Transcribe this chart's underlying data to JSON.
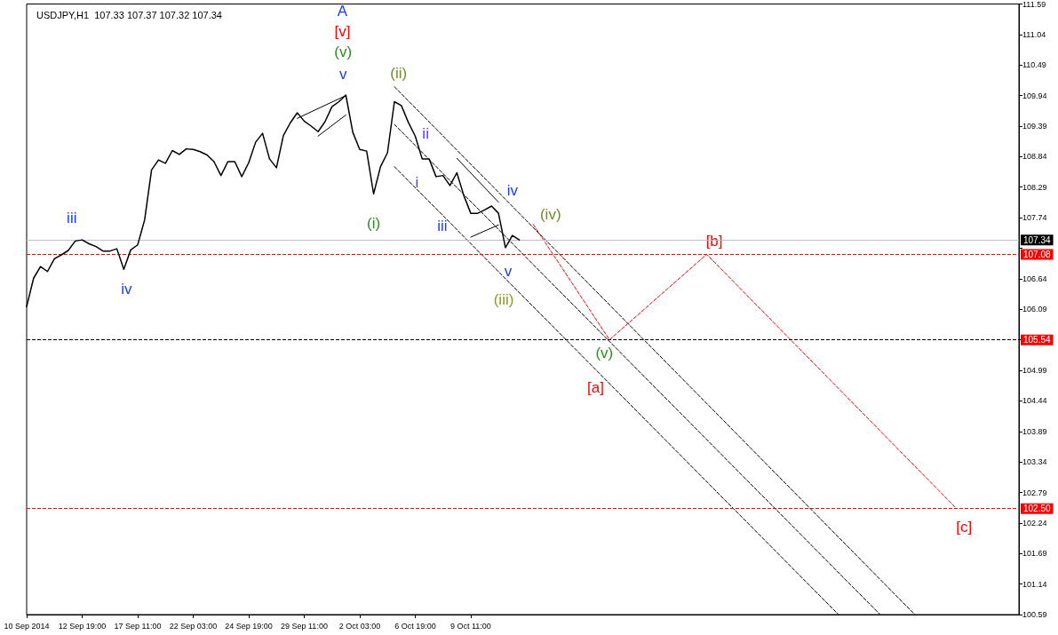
{
  "chart_data": {
    "type": "line",
    "title": "USDJPY,H1  107.33 107.37 107.32 107.34",
    "categories": [
      "10 Sep 2014",
      null,
      null,
      null,
      null,
      null,
      null,
      null,
      "12 Sep 19:00",
      null,
      null,
      null,
      null,
      null,
      null,
      null,
      "17 Sep 11:00",
      null,
      null,
      null,
      null,
      null,
      null,
      null,
      "22 Sep 03:00",
      null,
      null,
      null,
      null,
      null,
      null,
      null,
      "24 Sep 19:00",
      null,
      null,
      null,
      null,
      null,
      null,
      null,
      "29 Sep 11:00",
      null,
      null,
      null,
      null,
      null,
      null,
      null,
      "2 Oct 03:00",
      null,
      null,
      null,
      null,
      null,
      null,
      null,
      "6 Oct 19:00",
      null,
      null,
      null,
      null,
      null,
      null,
      null,
      "9 Oct 11:00",
      null,
      null,
      null,
      null,
      null,
      null,
      null,
      null,
      null,
      null,
      null,
      null,
      null,
      null,
      null,
      null,
      null,
      null,
      null,
      null,
      null,
      null,
      null,
      null,
      null,
      null,
      null,
      null,
      null,
      null,
      null,
      null,
      null,
      null,
      null,
      null,
      null,
      null,
      null,
      null,
      null,
      null,
      null,
      null,
      null,
      null,
      null,
      null,
      null,
      null,
      null,
      null,
      null,
      null,
      null,
      null,
      null,
      null,
      null,
      null,
      null,
      null,
      null,
      null,
      null,
      null,
      null,
      null,
      null,
      null,
      null,
      null,
      null,
      null,
      null,
      null,
      null,
      null,
      null
    ],
    "ylim": [
      100.59,
      111.59
    ],
    "yticks": [
      100.59,
      101.14,
      101.69,
      102.24,
      102.79,
      103.34,
      103.89,
      104.44,
      104.99,
      105.54,
      106.09,
      106.64,
      {
        "value": 107.19,
        "label": null
      },
      107.74,
      108.29,
      108.84,
      109.39,
      109.94,
      110.49,
      111.04,
      111.59
    ],
    "grid": false,
    "marker": "none",
    "series": [
      {
        "color": "#000000",
        "line_style": "solid",
        "values": [
          106.14,
          106.65,
          106.86,
          106.77,
          107.0,
          107.07,
          107.15,
          107.32,
          107.34,
          107.27,
          107.22,
          107.14,
          107.14,
          107.18,
          106.81,
          107.16,
          107.25,
          107.7,
          108.6,
          108.78,
          108.72,
          108.95,
          108.88,
          108.98,
          108.97,
          108.93,
          108.87,
          108.75,
          108.5,
          108.75,
          108.75,
          108.48,
          108.73,
          109.1,
          109.26,
          108.8,
          108.64,
          109.22,
          109.45,
          109.63,
          109.48,
          109.39,
          109.29,
          109.47,
          109.74,
          109.83,
          109.95,
          109.28,
          108.97,
          108.94,
          108.17,
          108.66,
          108.91,
          109.83,
          109.76,
          109.46,
          109.21,
          108.8,
          108.8,
          108.48,
          108.5,
          108.32,
          108.55,
          108.14,
          107.82,
          107.82,
          107.88,
          107.95,
          107.82,
          107.2,
          107.42,
          107.34,
          null,
          null,
          null,
          null,
          null,
          null,
          null,
          null,
          null,
          null,
          null,
          null,
          null,
          null,
          null,
          null,
          null,
          null,
          null,
          null,
          null,
          null,
          null,
          null,
          null,
          null,
          null,
          null,
          null,
          null,
          null,
          null,
          null,
          null,
          null,
          null,
          null,
          null,
          null,
          null,
          null,
          null,
          null,
          null,
          null,
          null,
          null,
          null,
          null,
          null,
          null,
          null,
          null,
          null,
          null,
          null,
          null,
          null,
          null,
          null,
          null,
          null,
          null,
          null,
          null,
          null,
          null,
          null,
          null,
          null,
          null,
          null
        ]
      },
      {
        "color": "#000000",
        "line_style": "dashed",
        "values": [
          null,
          null,
          null,
          null,
          null,
          null,
          null,
          null,
          null,
          null,
          null,
          null,
          null,
          null,
          null,
          null,
          null,
          null,
          null,
          null,
          null,
          null,
          null,
          null,
          null,
          null,
          null,
          null,
          null,
          null,
          null,
          null,
          null,
          null,
          null,
          null,
          null,
          null,
          null,
          null,
          null,
          null,
          null,
          null,
          null,
          null,
          null,
          null,
          null,
          null,
          null,
          null,
          null,
          110.1,
          null,
          null,
          null,
          null,
          null,
          null,
          null,
          null,
          null,
          null,
          null,
          null,
          null,
          null,
          null,
          null,
          null,
          null,
          null,
          null,
          null,
          null,
          null,
          null,
          null,
          null,
          null,
          null,
          null,
          null,
          null,
          null,
          null,
          null,
          null,
          null,
          null,
          null,
          null,
          null,
          null,
          null,
          null,
          null,
          null,
          null,
          null,
          null,
          null,
          null,
          null,
          null,
          null,
          null,
          null,
          null,
          null,
          null,
          null,
          null,
          null,
          null,
          null,
          null,
          null,
          null,
          null,
          null,
          null,
          null,
          null,
          null,
          null,
          null,
          100.59,
          null,
          null,
          null,
          null,
          null,
          null,
          null,
          null,
          null,
          null,
          null,
          null,
          null,
          null,
          null
        ]
      },
      {
        "color": "#000000",
        "line_style": "dashed",
        "values": [
          null,
          null,
          null,
          null,
          null,
          null,
          null,
          null,
          null,
          null,
          null,
          null,
          null,
          null,
          null,
          null,
          null,
          null,
          null,
          null,
          null,
          null,
          null,
          null,
          null,
          null,
          null,
          null,
          null,
          null,
          null,
          null,
          null,
          null,
          null,
          null,
          null,
          null,
          null,
          null,
          null,
          null,
          null,
          null,
          null,
          null,
          null,
          null,
          null,
          null,
          null,
          null,
          null,
          109.42,
          null,
          null,
          null,
          null,
          null,
          null,
          null,
          null,
          null,
          null,
          null,
          null,
          null,
          null,
          null,
          null,
          null,
          null,
          null,
          null,
          null,
          null,
          null,
          null,
          null,
          null,
          null,
          null,
          null,
          null,
          null,
          null,
          null,
          null,
          null,
          null,
          null,
          null,
          null,
          null,
          null,
          null,
          null,
          null,
          null,
          null,
          null,
          null,
          null,
          null,
          null,
          null,
          null,
          null,
          null,
          null,
          null,
          null,
          null,
          null,
          null,
          null,
          null,
          null,
          null,
          null,
          null,
          null,
          null,
          100.59,
          null,
          null,
          null,
          null,
          null,
          null,
          null,
          null,
          null,
          null,
          null,
          null,
          null,
          null,
          null,
          null,
          null,
          null,
          null,
          null
        ]
      },
      {
        "color": "#000000",
        "line_style": "dashed",
        "values": [
          null,
          null,
          null,
          null,
          null,
          null,
          null,
          null,
          null,
          null,
          null,
          null,
          null,
          null,
          null,
          null,
          null,
          null,
          null,
          null,
          null,
          null,
          null,
          null,
          null,
          null,
          null,
          null,
          null,
          null,
          null,
          null,
          null,
          null,
          null,
          null,
          null,
          null,
          null,
          null,
          null,
          null,
          null,
          null,
          null,
          null,
          null,
          null,
          null,
          null,
          null,
          null,
          null,
          108.66,
          null,
          null,
          null,
          null,
          null,
          null,
          null,
          null,
          null,
          null,
          null,
          null,
          null,
          null,
          null,
          null,
          null,
          null,
          null,
          null,
          null,
          null,
          null,
          null,
          null,
          null,
          null,
          null,
          null,
          null,
          null,
          null,
          null,
          null,
          null,
          null,
          null,
          null,
          null,
          null,
          null,
          null,
          null,
          null,
          null,
          null,
          null,
          null,
          null,
          null,
          null,
          null,
          null,
          null,
          null,
          null,
          null,
          null,
          null,
          null,
          null,
          null,
          null,
          100.59,
          null,
          null,
          null,
          null,
          null,
          null,
          null,
          null,
          null,
          null,
          null,
          null,
          null,
          null,
          null,
          null,
          null,
          null,
          null,
          null,
          null,
          null,
          null,
          null,
          null,
          null
        ]
      },
      {
        "color": "#000000",
        "line_style": "solid",
        "values": [
          null,
          null,
          null,
          null,
          null,
          null,
          null,
          null,
          null,
          null,
          null,
          null,
          null,
          null,
          null,
          null,
          null,
          null,
          null,
          null,
          null,
          null,
          null,
          null,
          null,
          null,
          null,
          null,
          null,
          null,
          null,
          null,
          null,
          null,
          null,
          null,
          null,
          null,
          null,
          109.53,
          null,
          null,
          null,
          null,
          null,
          null,
          109.94,
          null,
          null,
          null,
          null,
          null,
          null,
          null,
          null,
          null,
          null,
          null,
          null,
          null,
          null,
          null,
          null,
          null,
          null,
          null,
          null,
          null,
          null,
          null,
          null,
          null,
          null,
          null,
          null,
          null,
          null,
          null,
          null,
          null,
          null,
          null,
          null,
          null,
          null,
          null,
          null,
          null,
          null,
          null,
          null,
          null,
          null,
          null,
          null,
          null,
          null,
          null,
          null,
          null,
          null,
          null,
          null,
          null,
          null,
          null,
          null,
          null,
          null,
          null,
          null,
          null,
          null,
          null,
          null,
          null,
          null,
          null,
          null,
          null,
          null,
          null,
          null,
          null,
          null,
          null,
          null,
          null,
          null,
          null,
          null,
          null,
          null,
          null,
          null,
          null,
          null,
          null,
          null,
          null,
          null,
          null,
          null,
          null
        ]
      },
      {
        "color": "#000000",
        "line_style": "solid",
        "values": [
          null,
          null,
          null,
          null,
          null,
          null,
          null,
          null,
          null,
          null,
          null,
          null,
          null,
          null,
          null,
          null,
          null,
          null,
          null,
          null,
          null,
          null,
          null,
          null,
          null,
          null,
          null,
          null,
          null,
          null,
          null,
          null,
          null,
          null,
          null,
          null,
          null,
          null,
          null,
          null,
          null,
          null,
          109.21,
          null,
          null,
          null,
          109.59,
          null,
          null,
          null,
          null,
          null,
          null,
          null,
          null,
          null,
          null,
          null,
          null,
          null,
          null,
          null,
          null,
          null,
          null,
          null,
          null,
          null,
          null,
          null,
          null,
          null,
          null,
          null,
          null,
          null,
          null,
          null,
          null,
          null,
          null,
          null,
          null,
          null,
          null,
          null,
          null,
          null,
          null,
          null,
          null,
          null,
          null,
          null,
          null,
          null,
          null,
          null,
          null,
          null,
          null,
          null,
          null,
          null,
          null,
          null,
          null,
          null,
          null,
          null,
          null,
          null,
          null,
          null,
          null,
          null,
          null,
          null,
          null,
          null,
          null,
          null,
          null,
          null,
          null,
          null,
          null,
          null,
          null,
          null,
          null,
          null,
          null,
          null,
          null,
          null,
          null,
          null,
          null,
          null,
          null,
          null,
          null,
          null
        ]
      },
      {
        "color": "#000000",
        "line_style": "solid",
        "values": [
          null,
          null,
          null,
          null,
          null,
          null,
          null,
          null,
          null,
          null,
          null,
          null,
          null,
          null,
          null,
          null,
          null,
          null,
          null,
          null,
          null,
          null,
          null,
          null,
          null,
          null,
          null,
          null,
          null,
          null,
          null,
          null,
          null,
          null,
          null,
          null,
          null,
          null,
          null,
          null,
          null,
          null,
          null,
          null,
          null,
          null,
          null,
          null,
          null,
          null,
          null,
          null,
          null,
          null,
          null,
          null,
          null,
          null,
          null,
          null,
          null,
          null,
          108.81,
          null,
          null,
          null,
          null,
          null,
          108.02,
          null,
          null,
          null,
          null,
          null,
          null,
          null,
          null,
          null,
          null,
          null,
          null,
          null,
          null,
          null,
          null,
          null,
          null,
          null,
          null,
          null,
          null,
          null,
          null,
          null,
          null,
          null,
          null,
          null,
          null,
          null,
          null,
          null,
          null,
          null,
          null,
          null,
          null,
          null,
          null,
          null,
          null,
          null,
          null,
          null,
          null,
          null,
          null,
          null,
          null,
          null,
          null,
          null,
          null,
          null,
          null,
          null,
          null,
          null,
          null,
          null,
          null,
          null,
          null,
          null,
          null,
          null,
          null,
          null,
          null,
          null,
          null,
          null,
          null,
          null
        ]
      },
      {
        "color": "#000000",
        "line_style": "solid",
        "values": [
          null,
          null,
          null,
          null,
          null,
          null,
          null,
          null,
          null,
          null,
          null,
          null,
          null,
          null,
          null,
          null,
          null,
          null,
          null,
          null,
          null,
          null,
          null,
          null,
          null,
          null,
          null,
          null,
          null,
          null,
          null,
          null,
          null,
          null,
          null,
          null,
          null,
          null,
          null,
          null,
          null,
          null,
          null,
          null,
          null,
          null,
          null,
          null,
          null,
          null,
          null,
          null,
          null,
          null,
          null,
          null,
          null,
          null,
          null,
          null,
          null,
          null,
          null,
          null,
          107.39,
          null,
          null,
          null,
          107.61,
          null,
          null,
          null,
          null,
          null,
          null,
          null,
          null,
          null,
          null,
          null,
          null,
          null,
          null,
          null,
          null,
          null,
          null,
          null,
          null,
          null,
          null,
          null,
          null,
          null,
          null,
          null,
          null,
          null,
          null,
          null,
          null,
          null,
          null,
          null,
          null,
          null,
          null,
          null,
          null,
          null,
          null,
          null,
          null,
          null,
          null,
          null,
          null,
          null,
          null,
          null,
          null,
          null,
          null,
          null,
          null,
          null,
          null,
          null,
          null,
          null,
          null,
          null,
          null,
          null,
          null,
          null,
          null,
          null,
          null,
          null,
          null,
          null,
          null,
          null
        ]
      },
      {
        "color": "#ff0000",
        "line_style": "dashed",
        "values": [
          null,
          null,
          null,
          null,
          null,
          null,
          null,
          null,
          null,
          null,
          null,
          null,
          null,
          null,
          null,
          null,
          null,
          null,
          null,
          null,
          null,
          null,
          null,
          null,
          null,
          null,
          null,
          null,
          null,
          null,
          null,
          null,
          null,
          null,
          null,
          null,
          null,
          null,
          null,
          null,
          null,
          null,
          null,
          null,
          null,
          null,
          null,
          null,
          null,
          null,
          null,
          null,
          null,
          null,
          null,
          null,
          null,
          null,
          null,
          null,
          null,
          null,
          null,
          null,
          null,
          null,
          null,
          null,
          null,
          null,
          null,
          null,
          null,
          107.62,
          null,
          null,
          null,
          null,
          null,
          null,
          null,
          null,
          null,
          null,
          105.54,
          null,
          null,
          null,
          null,
          null,
          null,
          null,
          null,
          null,
          null,
          null,
          null,
          null,
          107.08,
          null,
          null,
          null,
          null,
          null,
          null,
          null,
          null,
          null,
          null,
          null,
          null,
          null,
          null,
          null,
          null,
          null,
          null,
          null,
          null,
          null,
          null,
          null,
          null,
          null,
          null,
          null,
          null,
          null,
          null,
          null,
          null,
          null,
          null,
          null,
          102.5,
          null,
          null,
          null,
          null,
          null,
          null,
          null,
          null,
          null
        ]
      }
    ],
    "ref_lines": [
      {
        "axis": "y",
        "value": 107.34,
        "label": "107.34",
        "color": "#c0c0c0",
        "line_style": "solid"
      },
      {
        "axis": "y",
        "value": 107.08,
        "label": "107.08",
        "color": "#ff0000",
        "line_style": "dashed"
      },
      {
        "axis": "y",
        "value": 105.54,
        "label": "105.54",
        "color": "#000000",
        "line_style": "dashed"
      },
      {
        "axis": "y",
        "value": 102.5,
        "label": "102.50",
        "color": "#ff0000",
        "line_style": "dashed"
      }
    ],
    "annotations": [
      "A",
      "[v]",
      "(v)",
      "v",
      "(ii)",
      "ii",
      "i",
      "iii",
      "iv",
      "(iv)",
      "(i)",
      "v",
      "(iii)",
      "iii",
      "iv",
      "[b]",
      "(v)",
      "[a]",
      "[c]"
    ]
  }
}
